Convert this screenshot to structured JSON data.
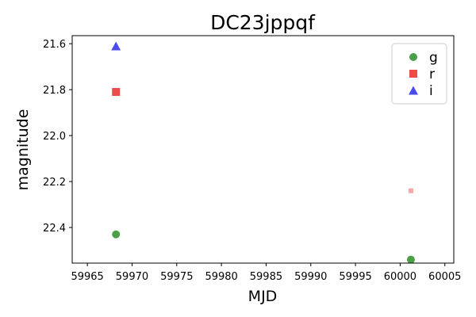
{
  "chart_data": {
    "type": "scatter",
    "title": "DC23jppqf",
    "xlabel": "MJD",
    "ylabel": "magnitude",
    "xlim": [
      59963.3,
      60006.0
    ],
    "ylim": [
      22.555,
      21.565
    ],
    "y_inverted": true,
    "x_ticks": [
      59965,
      59970,
      59975,
      59980,
      59985,
      59990,
      59995,
      60000,
      60005
    ],
    "x_tick_labels": [
      "59965",
      "59970",
      "59975",
      "59980",
      "59985",
      "59990",
      "59995",
      "60000",
      "60005"
    ],
    "y_ticks": [
      21.6,
      21.8,
      22.0,
      22.2,
      22.4
    ],
    "y_tick_labels": [
      "21.6",
      "21.8",
      "22.0",
      "22.2",
      "22.4"
    ],
    "grid": false,
    "legend_position": "top-right",
    "series": [
      {
        "name": "g",
        "marker": "circle",
        "color": "#4aa145",
        "points": [
          {
            "x": 59968.2,
            "y": 22.43
          },
          {
            "x": 60001.2,
            "y": 22.54
          }
        ]
      },
      {
        "name": "r",
        "marker": "square",
        "color": "#f04b4b",
        "points": [
          {
            "x": 59968.2,
            "y": 21.81
          },
          {
            "x": 60001.2,
            "y": 22.24,
            "faded": true
          }
        ]
      },
      {
        "name": "i",
        "marker": "triangle",
        "color": "#4b4bf0",
        "points": [
          {
            "x": 59968.2,
            "y": 21.61
          }
        ]
      }
    ]
  }
}
